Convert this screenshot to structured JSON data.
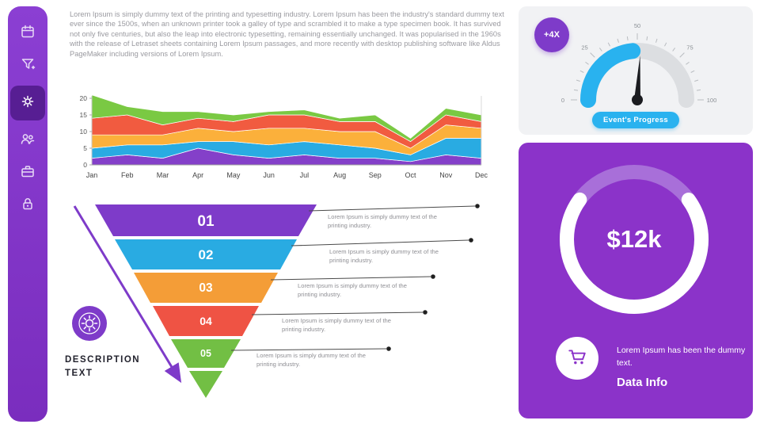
{
  "theme": {
    "purple": "#7E3BC9",
    "sidebar_purple": "#8136C8",
    "card_purple": "#8B33C9",
    "card_gray": "#F1F2F4",
    "accent_blue": "#29B2EF"
  },
  "sidebar": {
    "icons": [
      "calendar",
      "filter",
      "gear",
      "users",
      "briefcase",
      "lock"
    ],
    "active": "gear"
  },
  "intro_text": "Lorem Ipsum is simply dummy text of the printing and typesetting industry. Lorem Ipsum has been the industry's standard dummy text ever since the 1500s, when an unknown printer took a galley of type and scrambled it to make a type specimen book. It has survived not only five centuries, but also the leap into electronic typesetting, remaining essentially unchanged. It was popularised in the 1960s with the release of Letraset sheets containing Lorem Ipsum passages, and more recently with desktop publishing software like Aldus PageMaker including versions of Lorem Ipsum.",
  "chart_data": [
    {
      "type": "area",
      "stacked": true,
      "x": [
        "Jan",
        "Feb",
        "Mar",
        "Apr",
        "May",
        "Jun",
        "Jul",
        "Aug",
        "Sep",
        "Oct",
        "Nov",
        "Dec"
      ],
      "series": [
        {
          "name": "purple",
          "color": "#8440C9",
          "values": [
            2,
            3,
            2,
            5,
            3,
            2,
            3,
            2,
            2,
            1,
            3,
            2
          ]
        },
        {
          "name": "blue",
          "color": "#29ABE2",
          "values": [
            3,
            3,
            4,
            2,
            4,
            4,
            4,
            4,
            3,
            2,
            5,
            6
          ]
        },
        {
          "name": "orange",
          "color": "#FBB03B",
          "values": [
            4,
            3,
            3,
            4,
            3,
            5,
            4,
            4,
            5,
            2,
            4,
            3
          ]
        },
        {
          "name": "red",
          "color": "#F15B40",
          "values": [
            5,
            6,
            3,
            3,
            3,
            4,
            4,
            3,
            3,
            2,
            3,
            2
          ]
        },
        {
          "name": "green",
          "color": "#7AC943",
          "values": [
            7,
            2.5,
            4,
            2,
            2,
            1,
            1.5,
            1,
            2,
            1,
            2,
            2
          ]
        }
      ],
      "ylim": [
        0,
        20
      ],
      "yticks": [
        0,
        5,
        10,
        15,
        20
      ],
      "title": "",
      "xlabel": "",
      "ylabel": ""
    },
    {
      "type": "gauge",
      "min": 0,
      "max": 100,
      "ticks": [
        0,
        25,
        50,
        75,
        100
      ],
      "value": 47,
      "needle": 52,
      "color": "#29B2EF",
      "badge": "+4X",
      "button_label": "Event's Progress"
    },
    {
      "type": "donut",
      "label": "$12k",
      "percent": 70,
      "ring_color": "#FFFFFF",
      "track_color": "#A86FD9"
    }
  ],
  "funnel": {
    "description": "DESCRIPTION TEXT",
    "steps": [
      {
        "num": "01",
        "color": "#7E3BC9",
        "text": "Lorem Ipsum is simply dummy text of the printing industry."
      },
      {
        "num": "02",
        "color": "#29ABE2",
        "text": "Lorem Ipsum is simply dummy text of the printing industry."
      },
      {
        "num": "03",
        "color": "#F49D37",
        "text": "Lorem Ipsum is simply dummy text of the printing industry."
      },
      {
        "num": "04",
        "color": "#EF5344",
        "text": "Lorem Ipsum is simply dummy text of the printing industry."
      },
      {
        "num": "05",
        "color": "#72BF44",
        "text": "Lorem Ipsum is simply dummy text of the printing industry."
      }
    ]
  },
  "data_info": {
    "text": "Lorem Ipsum has been the dummy text.",
    "title": "Data Info"
  }
}
